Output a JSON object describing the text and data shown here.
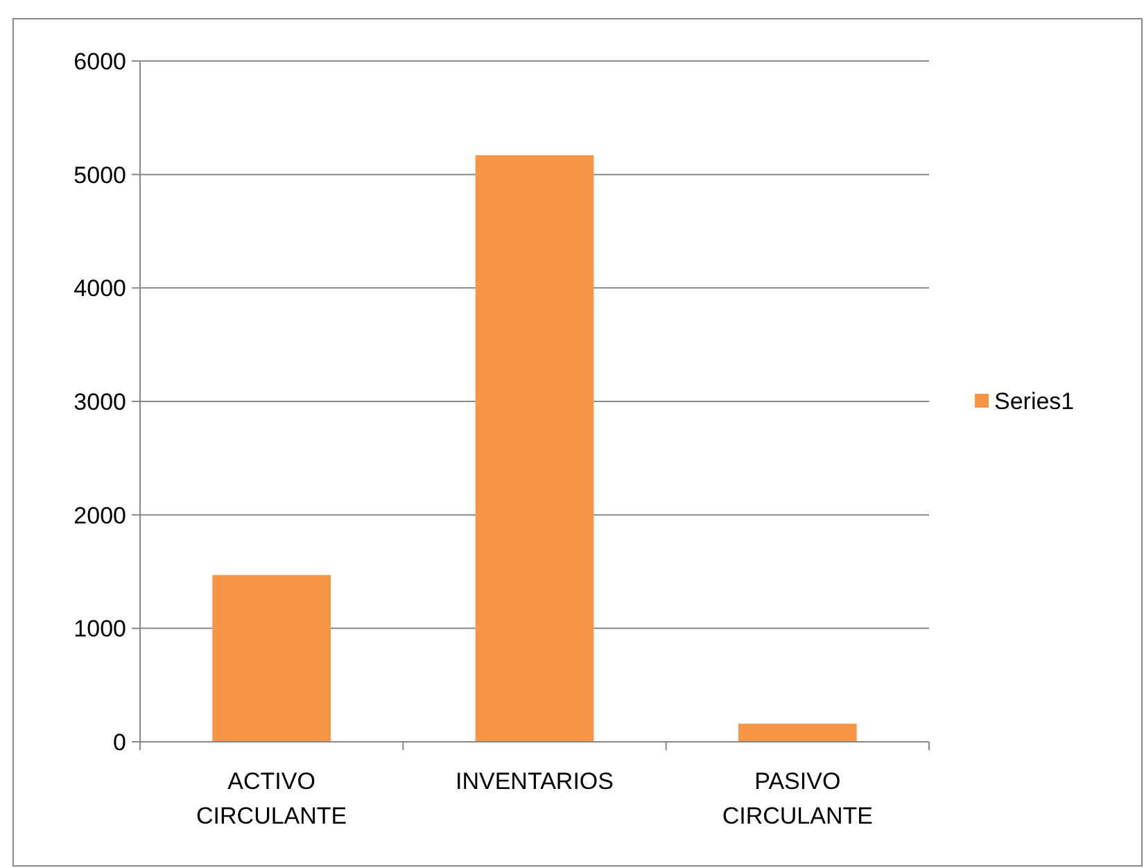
{
  "chart_data": {
    "type": "bar",
    "categories": [
      "ACTIVO CIRCULANTE",
      "INVENTARIOS",
      "PASIVO CIRCULANTE"
    ],
    "series": [
      {
        "name": "Series1",
        "color": "#f79646",
        "values": [
          1470,
          5170,
          160
        ]
      }
    ],
    "ylim": [
      0,
      6000
    ],
    "yticks": [
      0,
      1000,
      2000,
      3000,
      4000,
      5000,
      6000
    ],
    "grid": "y",
    "legend": "right"
  }
}
